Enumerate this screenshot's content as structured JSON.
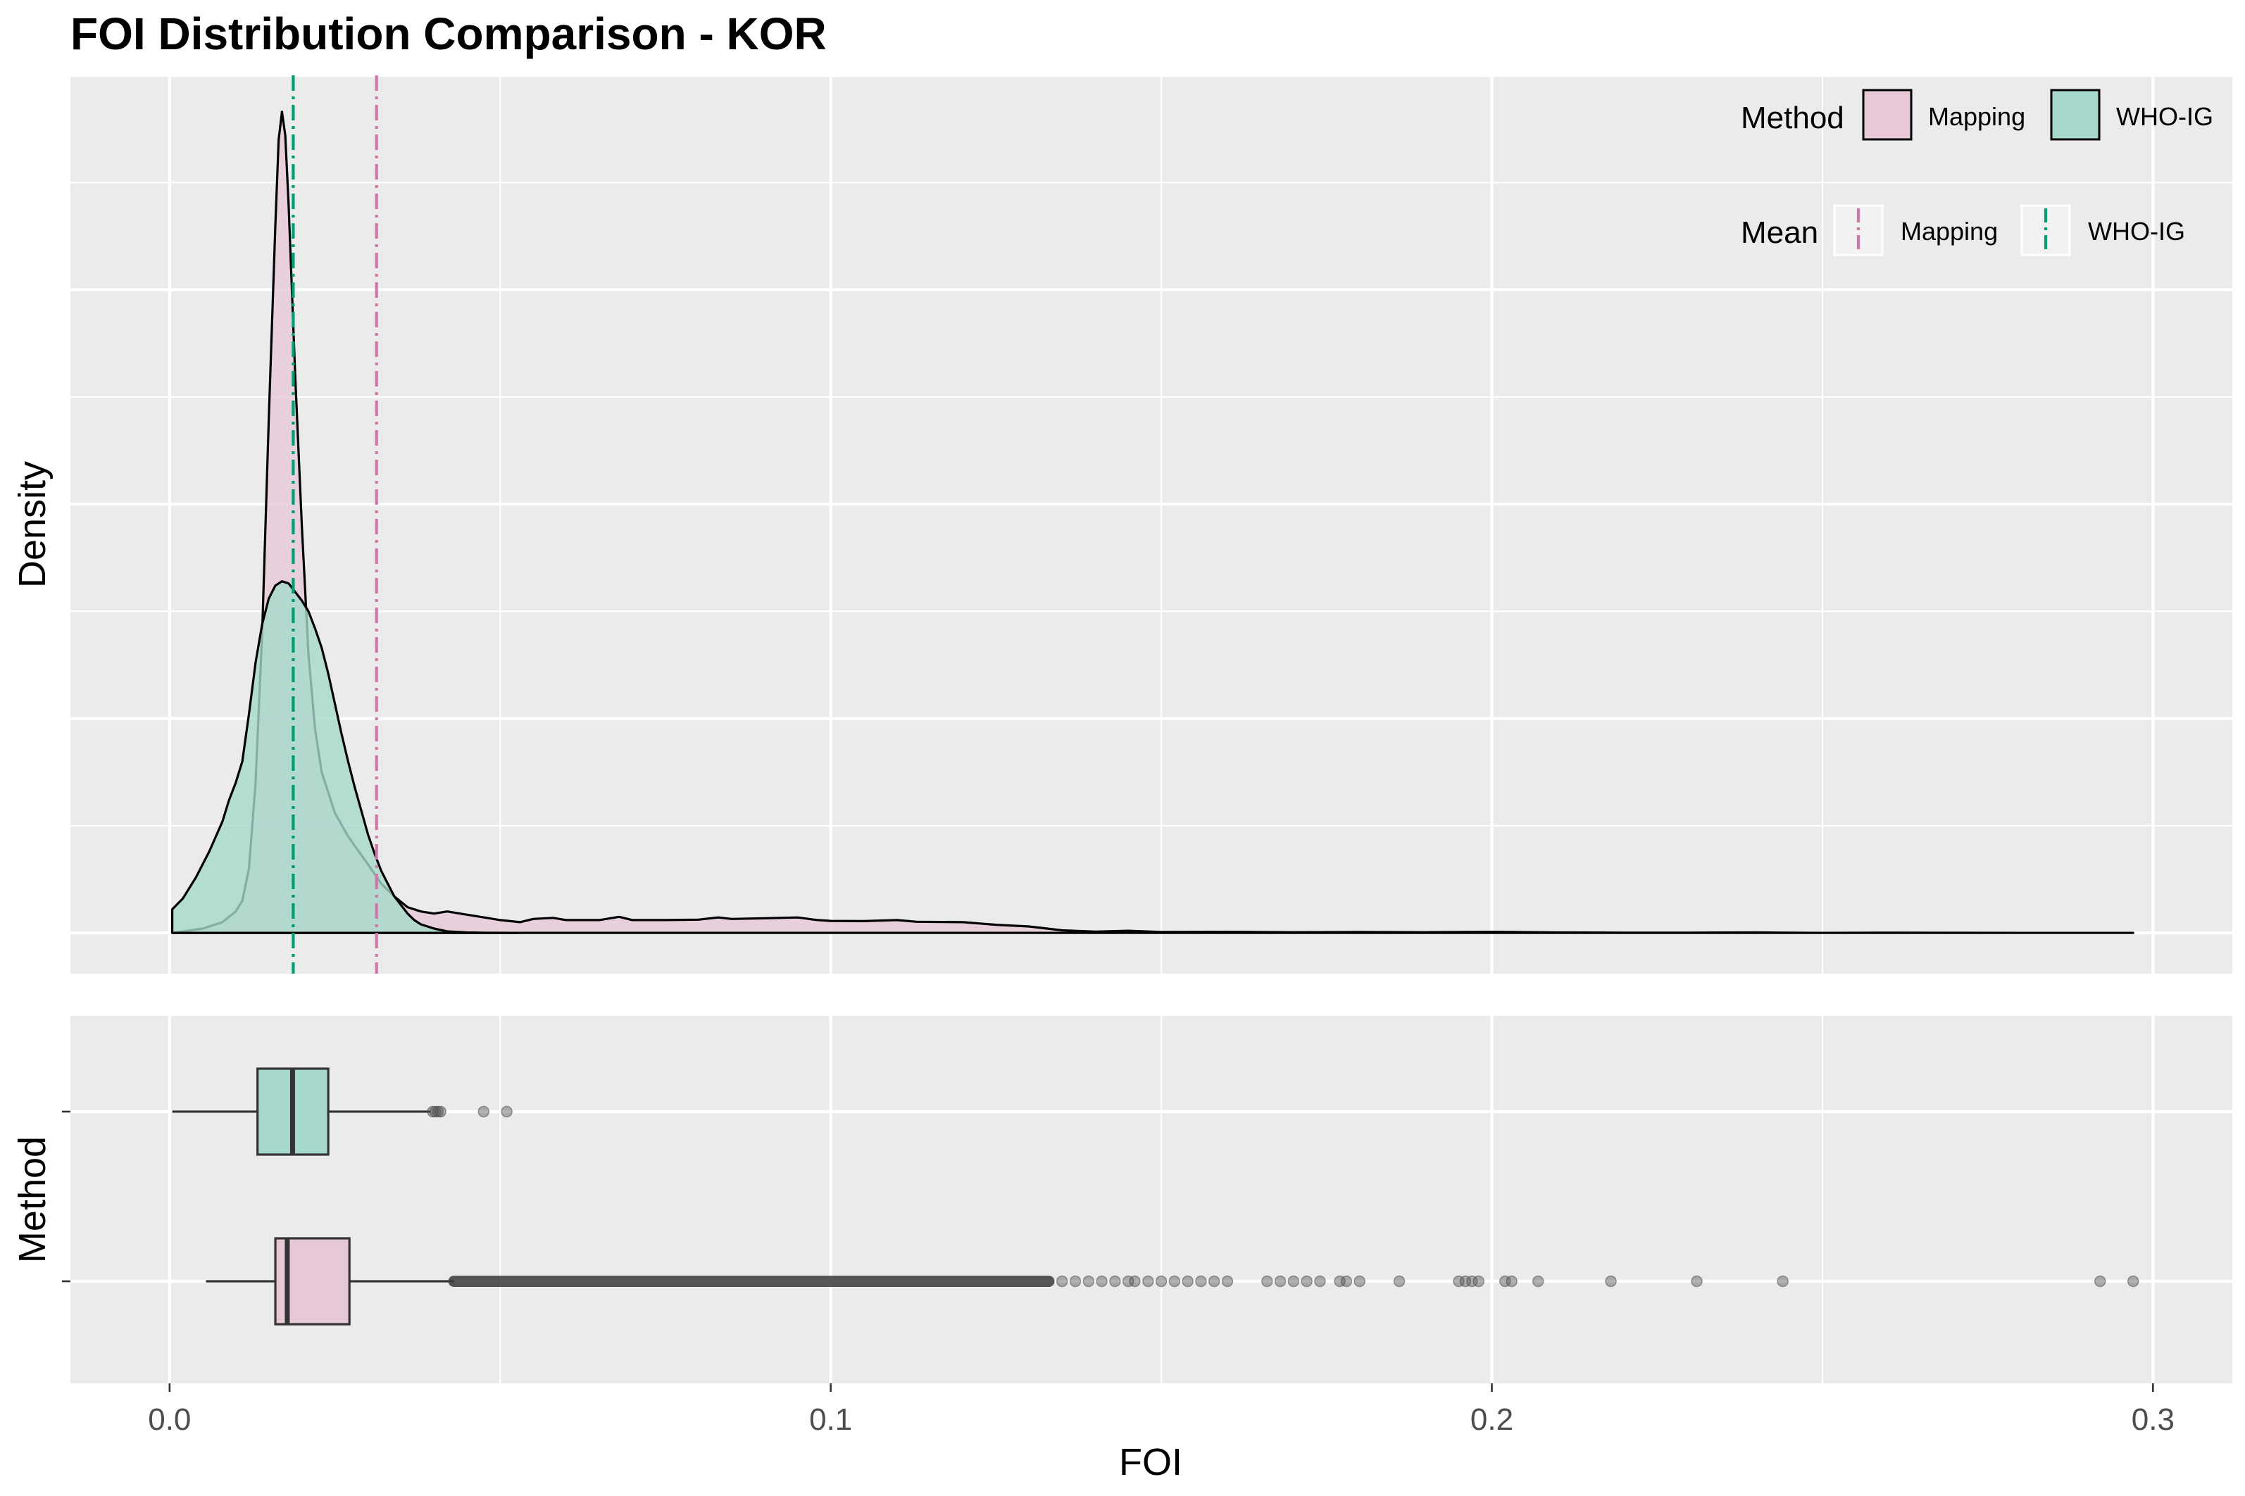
{
  "chart_data": [
    {
      "type": "area",
      "panel": "density",
      "title": "FOI Distribution Comparison - KOR",
      "ylabel": "Density",
      "xlim": [
        -0.015,
        0.312
      ],
      "ylim": [
        -1.9,
        40
      ],
      "x_ticks": [
        0.0,
        0.1,
        0.2,
        0.3
      ],
      "legend_placement": "top-right",
      "grid": true,
      "series": [
        {
          "name": "Mapping",
          "color": "#E6C8D7",
          "points": [
            [
              0.0006,
              0
            ],
            [
              0.005,
              0.2
            ],
            [
              0.008,
              0.5
            ],
            [
              0.01,
              1.0
            ],
            [
              0.011,
              1.5
            ],
            [
              0.012,
              3
            ],
            [
              0.013,
              7
            ],
            [
              0.014,
              14
            ],
            [
              0.015,
              24
            ],
            [
              0.016,
              33
            ],
            [
              0.0165,
              37
            ],
            [
              0.017,
              38.3
            ],
            [
              0.0175,
              37.2
            ],
            [
              0.018,
              34
            ],
            [
              0.019,
              26
            ],
            [
              0.02,
              19
            ],
            [
              0.021,
              13
            ],
            [
              0.022,
              9.5
            ],
            [
              0.023,
              7.5
            ],
            [
              0.025,
              5.6
            ],
            [
              0.027,
              4.5
            ],
            [
              0.03,
              3.2
            ],
            [
              0.032,
              2.3
            ],
            [
              0.034,
              1.7
            ],
            [
              0.036,
              1.2
            ],
            [
              0.038,
              1.0
            ],
            [
              0.04,
              0.9
            ],
            [
              0.042,
              1.0
            ],
            [
              0.045,
              0.85
            ],
            [
              0.048,
              0.7
            ],
            [
              0.05,
              0.6
            ],
            [
              0.053,
              0.5
            ],
            [
              0.055,
              0.65
            ],
            [
              0.058,
              0.7
            ],
            [
              0.06,
              0.6
            ],
            [
              0.065,
              0.6
            ],
            [
              0.068,
              0.75
            ],
            [
              0.07,
              0.6
            ],
            [
              0.075,
              0.6
            ],
            [
              0.08,
              0.62
            ],
            [
              0.083,
              0.72
            ],
            [
              0.085,
              0.65
            ],
            [
              0.09,
              0.68
            ],
            [
              0.095,
              0.72
            ],
            [
              0.098,
              0.6
            ],
            [
              0.1,
              0.56
            ],
            [
              0.105,
              0.55
            ],
            [
              0.11,
              0.6
            ],
            [
              0.113,
              0.52
            ],
            [
              0.12,
              0.5
            ],
            [
              0.125,
              0.38
            ],
            [
              0.13,
              0.3
            ],
            [
              0.135,
              0.12
            ],
            [
              0.14,
              0.06
            ],
            [
              0.145,
              0.1
            ],
            [
              0.15,
              0.04
            ],
            [
              0.16,
              0.05
            ],
            [
              0.17,
              0.03
            ],
            [
              0.18,
              0.04
            ],
            [
              0.19,
              0.03
            ],
            [
              0.2,
              0.05
            ],
            [
              0.21,
              0.02
            ],
            [
              0.22,
              0.01
            ],
            [
              0.23,
              0.01
            ],
            [
              0.24,
              0.02
            ],
            [
              0.25,
              0.0
            ],
            [
              0.26,
              0.01
            ],
            [
              0.28,
              0.0
            ],
            [
              0.297,
              0.0
            ]
          ]
        },
        {
          "name": "WHO-IG",
          "color": "#A6D9CB",
          "points": [
            [
              0.0004,
              1.1
            ],
            [
              0.002,
              1.6
            ],
            [
              0.004,
              2.6
            ],
            [
              0.006,
              3.8
            ],
            [
              0.008,
              5.2
            ],
            [
              0.009,
              6.2
            ],
            [
              0.01,
              7.0
            ],
            [
              0.011,
              8.0
            ],
            [
              0.012,
              10.2
            ],
            [
              0.013,
              12.6
            ],
            [
              0.014,
              14.4
            ],
            [
              0.015,
              15.6
            ],
            [
              0.016,
              16.2
            ],
            [
              0.017,
              16.4
            ],
            [
              0.018,
              16.3
            ],
            [
              0.019,
              15.9
            ],
            [
              0.02,
              15.5
            ],
            [
              0.021,
              15.0
            ],
            [
              0.022,
              14.2
            ],
            [
              0.023,
              13.3
            ],
            [
              0.024,
              12.1
            ],
            [
              0.025,
              10.7
            ],
            [
              0.026,
              9.3
            ],
            [
              0.027,
              8.0
            ],
            [
              0.028,
              6.8
            ],
            [
              0.029,
              5.7
            ],
            [
              0.03,
              4.6
            ],
            [
              0.031,
              3.7
            ],
            [
              0.032,
              2.9
            ],
            [
              0.033,
              2.3
            ],
            [
              0.034,
              1.7
            ],
            [
              0.035,
              1.3
            ],
            [
              0.036,
              0.9
            ],
            [
              0.037,
              0.6
            ],
            [
              0.038,
              0.4
            ],
            [
              0.04,
              0.2
            ],
            [
              0.042,
              0.07
            ],
            [
              0.045,
              0.02
            ],
            [
              0.048,
              0.005
            ],
            [
              0.053,
              0.0
            ]
          ]
        }
      ],
      "means": [
        {
          "name": "Mapping",
          "x": 0.0313,
          "color": "#CC79A7"
        },
        {
          "name": "WHO-IG",
          "x": 0.0187,
          "color": "#009E73"
        }
      ],
      "legend": {
        "fill_title": "Method",
        "fill_entries": [
          {
            "label": "Mapping",
            "color": "#E6C8D7"
          },
          {
            "label": "WHO-IG",
            "color": "#A6D9CB"
          }
        ],
        "line_title": "Mean",
        "line_entries": [
          {
            "label": "Mapping",
            "color": "#CC79A7"
          },
          {
            "label": "WHO-IG",
            "color": "#009E73"
          }
        ]
      }
    },
    {
      "type": "box",
      "panel": "boxplot",
      "ylabel": "Method",
      "xlabel": "FOI",
      "xlim": [
        -0.015,
        0.312
      ],
      "x_ticks": [
        0.0,
        0.1,
        0.2,
        0.3
      ],
      "x_tick_labels": [
        "0.0",
        "0.1",
        "0.2",
        "0.3"
      ],
      "grid": true,
      "boxes": [
        {
          "name": "WHO-IG",
          "color": "#A6D9CB",
          "whisker_low": 0.0004,
          "q1": 0.0133,
          "median": 0.0186,
          "q3": 0.024,
          "whisker_high": 0.0395,
          "outliers": [
            0.0398,
            0.0402,
            0.0406,
            0.041,
            0.0475,
            0.051
          ]
        },
        {
          "name": "Mapping",
          "color": "#E6C8D7",
          "whisker_low": 0.0055,
          "q1": 0.016,
          "median": 0.0178,
          "q3": 0.0272,
          "whisker_high": 0.043,
          "dense_outlier_range": [
            0.043,
            0.133
          ],
          "outliers": [
            0.135,
            0.137,
            0.139,
            0.141,
            0.143,
            0.145,
            0.146,
            0.148,
            0.15,
            0.152,
            0.154,
            0.156,
            0.158,
            0.16,
            0.166,
            0.168,
            0.17,
            0.172,
            0.174,
            0.177,
            0.178,
            0.18,
            0.186,
            0.195,
            0.196,
            0.197,
            0.198,
            0.202,
            0.203,
            0.207,
            0.218,
            0.231,
            0.244,
            0.292,
            0.297
          ]
        }
      ]
    }
  ]
}
